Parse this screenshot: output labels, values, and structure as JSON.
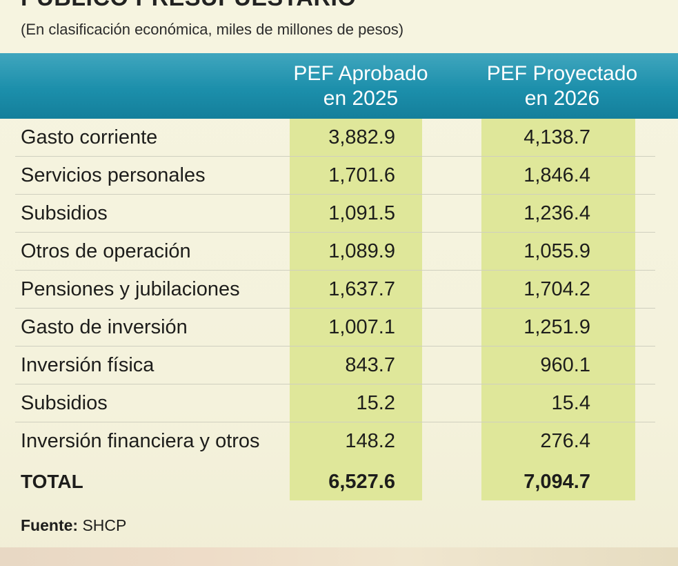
{
  "title": "PÚBLICO PRESUPUESTARIO",
  "subtitle": "(En clasificación económica, miles de millones de pesos)",
  "columns": [
    "PEF Aprobado en 2025",
    "PEF Proyectado en 2026"
  ],
  "colors": {
    "header": "#1c8fab",
    "highlight": "#dfe79a",
    "background": "#f5f3de"
  },
  "chart_data": {
    "type": "table",
    "title": "PÚBLICO PRESUPUESTARIO",
    "subtitle": "(En clasificación económica, miles de millones de pesos)",
    "columns": [
      "PEF Aprobado en 2025",
      "PEF Proyectado en 2026"
    ],
    "rows": [
      {
        "label": "Gasto corriente",
        "v2025": "3,882.9",
        "v2026": "4,138.7"
      },
      {
        "label": "Servicios personales",
        "v2025": "1,701.6",
        "v2026": "1,846.4"
      },
      {
        "label": "Subsidios",
        "v2025": "1,091.5",
        "v2026": "1,236.4"
      },
      {
        "label": "Otros de operación",
        "v2025": "1,089.9",
        "v2026": "1,055.9"
      },
      {
        "label": "Pensiones y jubilaciones",
        "v2025": "1,637.7",
        "v2026": "1,704.2"
      },
      {
        "label": "Gasto de inversión",
        "v2025": "1,007.1",
        "v2026": "1,251.9"
      },
      {
        "label": "Inversión física",
        "v2025": "843.7",
        "v2026": "960.1"
      },
      {
        "label": "Subsidios",
        "v2025": "15.2",
        "v2026": "15.4"
      },
      {
        "label": "Inversión financiera y otros",
        "v2025": "148.2",
        "v2026": "276.4"
      }
    ],
    "total": {
      "label": "TOTAL",
      "v2025": "6,527.6",
      "v2026": "7,094.7"
    }
  },
  "source": {
    "label": "Fuente:",
    "value": "SHCP"
  }
}
